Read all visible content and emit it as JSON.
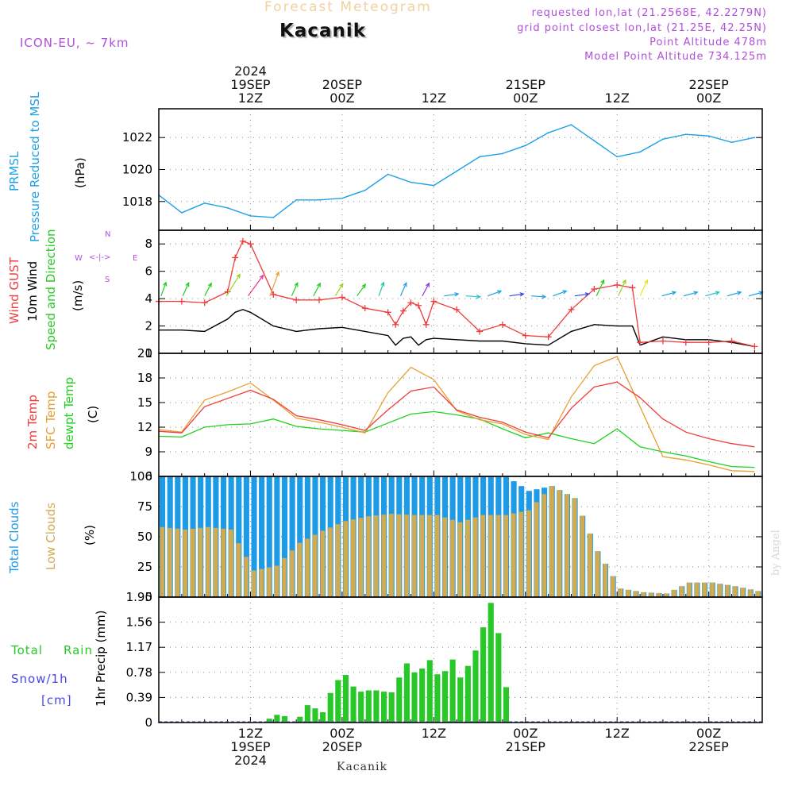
{
  "header": {
    "title": "Forecast Meteogram",
    "location": "Kacanik",
    "model": "ICON-EU,  ~ 7km",
    "requested": "requested lon,lat (21.2568E, 42.2279N)",
    "grid_point": "grid point closest lon,lat (21.25E, 42.25N)",
    "point_altitude": "Point Altitude 478m",
    "model_altitude": "Model Point Altitude 734.125m",
    "footer_location": "Kacanik",
    "credit": "by Angel"
  },
  "time_axis": {
    "top": [
      {
        "h": 12,
        "lines": [
          "2024",
          "19SEP",
          "12Z"
        ]
      },
      {
        "h": 24,
        "lines": [
          "20SEP",
          "00Z"
        ]
      },
      {
        "h": 36,
        "lines": [
          "12Z"
        ]
      },
      {
        "h": 48,
        "lines": [
          "21SEP",
          "00Z"
        ]
      },
      {
        "h": 60,
        "lines": [
          "12Z"
        ]
      },
      {
        "h": 72,
        "lines": [
          "22SEP",
          "00Z"
        ]
      }
    ],
    "bottom": [
      {
        "h": 12,
        "lines": [
          "12Z",
          "19SEP",
          "2024"
        ]
      },
      {
        "h": 24,
        "lines": [
          "00Z",
          "20SEP"
        ]
      },
      {
        "h": 36,
        "lines": [
          "12Z"
        ]
      },
      {
        "h": 48,
        "lines": [
          "00Z",
          "21SEP"
        ]
      },
      {
        "h": 60,
        "lines": [
          "12Z"
        ]
      },
      {
        "h": 72,
        "lines": [
          "00Z",
          "22SEP"
        ]
      }
    ]
  },
  "labels": {
    "pressure": [
      "PRMSL",
      "Pressure Reduced to MSL",
      "(hPa)"
    ],
    "wind": [
      "Wind GUST",
      "10m Wind",
      "Speed and Direction",
      "(m/s)"
    ],
    "compass": {
      "n": "N",
      "s": "S",
      "w": "W",
      "e": "E",
      "arrow": "<-|->"
    },
    "temp": [
      "2m Temp",
      "SFC Temp",
      "dewpt Temp",
      "(C)"
    ],
    "clouds": [
      "Total Clouds",
      "Low Clouds",
      "(%)"
    ],
    "precip_axis": "1hr Precip (mm)",
    "precip_legend": [
      "Total",
      "Rain",
      "Snow/1h",
      "[cm]"
    ]
  },
  "colors": {
    "pressure": "#1ea0e6",
    "gust": "#f03c3c",
    "wind": "#000000",
    "t2m": "#f03c3c",
    "sfc": "#e6a032",
    "dewpt": "#1ed21e",
    "total_cloud": "#1e9be6",
    "low_cloud": "#d2aa50",
    "rain": "#28c828",
    "snow": "#4646e6",
    "purple": "#b04fd8"
  },
  "chart_data": [
    {
      "type": "line",
      "id": "pressure",
      "title": "PRMSL Pressure Reduced to MSL",
      "ylabel": "(hPa)",
      "ylim": [
        1016.2,
        1023.8
      ],
      "yticks": [
        1018,
        1020,
        1022
      ],
      "x_hours": [
        0,
        3,
        6,
        9,
        12,
        15,
        18,
        21,
        24,
        27,
        30,
        33,
        36,
        39,
        42,
        45,
        48,
        51,
        54,
        57,
        60,
        63,
        66,
        69,
        72,
        75,
        78
      ],
      "values": [
        1018.4,
        1017.3,
        1017.9,
        1017.6,
        1017.1,
        1017.0,
        1018.1,
        1018.1,
        1018.2,
        1018.7,
        1019.7,
        1019.2,
        1019.0,
        1019.9,
        1020.8,
        1021.0,
        1021.5,
        1022.3,
        1022.8,
        1021.8,
        1020.8,
        1021.1,
        1021.9,
        1022.2,
        1022.1,
        1021.7,
        1022.0
      ]
    },
    {
      "type": "line",
      "id": "wind",
      "ylabel": "(m/s)",
      "ylim": [
        0,
        9
      ],
      "yticks": [
        0,
        2,
        4,
        6,
        8
      ],
      "x_hours": [
        0,
        3,
        6,
        9,
        10,
        11,
        12,
        15,
        18,
        21,
        24,
        27,
        30,
        31,
        32,
        33,
        34,
        35,
        36,
        39,
        42,
        45,
        48,
        51,
        54,
        57,
        60,
        62,
        63,
        66,
        69,
        72,
        75,
        78
      ],
      "gust": [
        3.8,
        3.8,
        3.7,
        4.5,
        7.0,
        8.2,
        8.0,
        4.3,
        3.9,
        3.9,
        4.1,
        3.3,
        3.0,
        2.1,
        3.1,
        3.7,
        3.5,
        2.1,
        3.8,
        3.2,
        1.6,
        2.1,
        1.3,
        1.2,
        3.2,
        4.7,
        5.0,
        4.8,
        0.8,
        0.9,
        0.8,
        0.8,
        0.9,
        0.5
      ],
      "wind10m": [
        1.7,
        1.7,
        1.6,
        2.5,
        3.0,
        3.2,
        3.0,
        2.0,
        1.6,
        1.8,
        1.9,
        1.6,
        1.3,
        0.6,
        1.1,
        1.2,
        0.6,
        1.0,
        1.1,
        1.0,
        0.9,
        0.9,
        0.7,
        0.6,
        1.6,
        2.1,
        2.0,
        2.0,
        0.6,
        1.2,
        1.0,
        1.0,
        0.8,
        0.5
      ]
    },
    {
      "type": "line",
      "id": "temperature",
      "ylabel": "(C)",
      "ylim": [
        6,
        21
      ],
      "yticks": [
        6,
        9,
        12,
        15,
        18,
        21
      ],
      "x_hours": [
        0,
        3,
        6,
        9,
        12,
        15,
        18,
        21,
        24,
        27,
        30,
        33,
        36,
        39,
        42,
        45,
        48,
        51,
        54,
        57,
        60,
        63,
        66,
        69,
        72,
        75,
        78
      ],
      "t2m": [
        11.5,
        11.3,
        14.5,
        15.5,
        16.5,
        15.4,
        13.4,
        12.9,
        12.3,
        11.6,
        14.1,
        16.4,
        16.9,
        14.1,
        13.2,
        12.6,
        11.4,
        10.7,
        14.3,
        16.9,
        17.5,
        15.6,
        13.0,
        11.4,
        10.6,
        10.0,
        9.6
      ],
      "sfc": [
        11.7,
        11.4,
        15.3,
        16.3,
        17.4,
        15.3,
        13.1,
        12.6,
        12.0,
        11.3,
        16.2,
        19.3,
        17.8,
        14.0,
        12.9,
        12.4,
        11.1,
        10.5,
        15.7,
        19.5,
        20.6,
        14.5,
        8.4,
        8.0,
        7.4,
        6.7,
        6.6
      ],
      "dewpt": [
        10.9,
        10.8,
        12.0,
        12.3,
        12.4,
        13.0,
        12.1,
        11.8,
        11.6,
        11.4,
        12.5,
        13.6,
        13.9,
        13.5,
        13.0,
        11.8,
        10.7,
        11.3,
        10.6,
        10.0,
        11.8,
        9.6,
        9.0,
        8.5,
        7.8,
        7.2,
        7.1
      ]
    },
    {
      "type": "bar",
      "id": "clouds",
      "ylabel": "(%)",
      "ylim": [
        0,
        100
      ],
      "yticks": [
        0,
        25,
        50,
        75,
        100
      ],
      "x_hours": [
        0,
        3,
        6,
        9,
        12,
        15,
        18,
        21,
        24,
        27,
        30,
        33,
        36,
        39,
        42,
        45,
        48,
        51,
        54,
        57,
        60,
        63,
        66,
        69,
        72,
        75,
        78
      ],
      "total": [
        100,
        100,
        100,
        100,
        100,
        100,
        100,
        100,
        100,
        100,
        100,
        100,
        100,
        100,
        100,
        100,
        88,
        92,
        82,
        38,
        7,
        4,
        3,
        12,
        12,
        9,
        5
      ],
      "low": [
        58,
        56,
        58,
        56,
        22,
        26,
        45,
        55,
        63,
        67,
        69,
        68,
        68,
        62,
        68,
        68,
        72,
        92,
        82,
        38,
        7,
        4,
        3,
        12,
        12,
        9,
        5
      ]
    },
    {
      "type": "bar",
      "id": "precip",
      "ylabel": "1hr Precip (mm)",
      "ylim": [
        0,
        1.95
      ],
      "yticks": [
        0,
        0.39,
        0.78,
        1.17,
        1.56,
        1.95
      ],
      "x_hours": [
        14,
        15,
        16,
        18,
        19,
        20,
        21,
        22,
        23,
        24,
        25,
        26,
        27,
        28,
        29,
        30,
        31,
        32,
        33,
        34,
        35,
        36,
        37,
        38,
        39,
        40,
        41,
        42,
        43,
        44,
        45
      ],
      "rain": [
        0.06,
        0.12,
        0.1,
        0.09,
        0.27,
        0.22,
        0.16,
        0.46,
        0.66,
        0.74,
        0.56,
        0.48,
        0.5,
        0.5,
        0.48,
        0.47,
        0.7,
        0.92,
        0.78,
        0.84,
        0.97,
        0.75,
        0.8,
        0.98,
        0.7,
        0.88,
        1.12,
        1.48,
        1.86,
        1.39,
        0.55
      ],
      "snow": []
    }
  ]
}
